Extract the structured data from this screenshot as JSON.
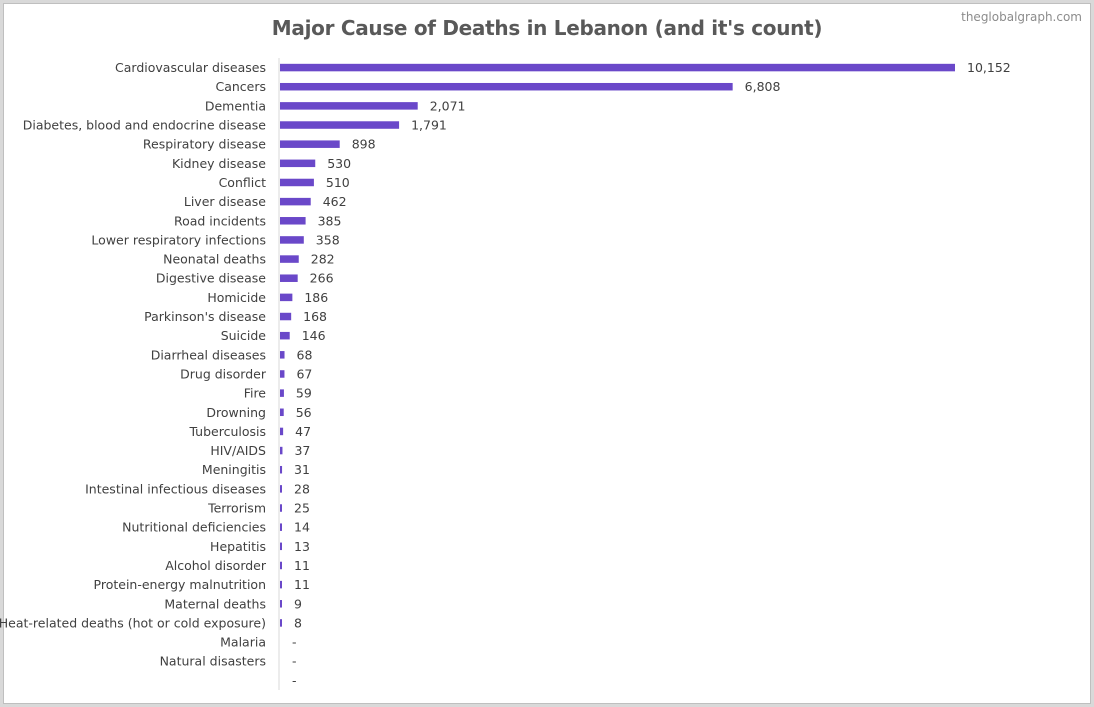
{
  "watermark": "theglobalgraph.com",
  "chart_data": {
    "type": "bar",
    "orientation": "horizontal",
    "title": "Major Cause of Deaths in Lebanon (and it's count)",
    "xlabel": "",
    "ylabel": "",
    "grid": false,
    "legend": "none",
    "bar_color": "#6a48c9",
    "categories": [
      "Cardiovascular diseases",
      "Cancers",
      "Dementia",
      "Diabetes, blood and endocrine disease",
      "Respiratory disease",
      "Kidney disease",
      "Conflict",
      "Liver disease",
      "Road incidents",
      "Lower respiratory infections",
      "Neonatal deaths",
      "Digestive disease",
      "Homicide",
      "Parkinson's disease",
      "Suicide",
      "Diarrheal diseases",
      "Drug disorder",
      "Fire",
      "Drowning",
      "Tuberculosis",
      "HIV/AIDS",
      "Meningitis",
      "Intestinal infectious diseases",
      "Terrorism",
      "Nutritional deficiencies",
      "Hepatitis",
      "Alcohol disorder",
      "Protein-energy malnutrition",
      "Maternal deaths",
      "Heat-related deaths (hot or cold exposure)",
      "Malaria",
      "Natural disasters",
      ""
    ],
    "values": [
      10152,
      6808,
      2071,
      1791,
      898,
      530,
      510,
      462,
      385,
      358,
      282,
      266,
      186,
      168,
      146,
      68,
      67,
      59,
      56,
      47,
      37,
      31,
      28,
      25,
      14,
      13,
      11,
      11,
      9,
      8,
      0,
      0,
      0
    ],
    "value_labels": [
      "10,152",
      "6,808",
      "2,071",
      "1,791",
      "898",
      "530",
      "510",
      "462",
      "385",
      "358",
      "282",
      "266",
      "186",
      "168",
      "146",
      "68",
      "67",
      "59",
      "56",
      "47",
      "37",
      "31",
      "28",
      "25",
      "14",
      "13",
      "11",
      "11",
      "9",
      "8",
      "-",
      "-",
      "-"
    ],
    "xlim": [
      0,
      10152
    ]
  }
}
